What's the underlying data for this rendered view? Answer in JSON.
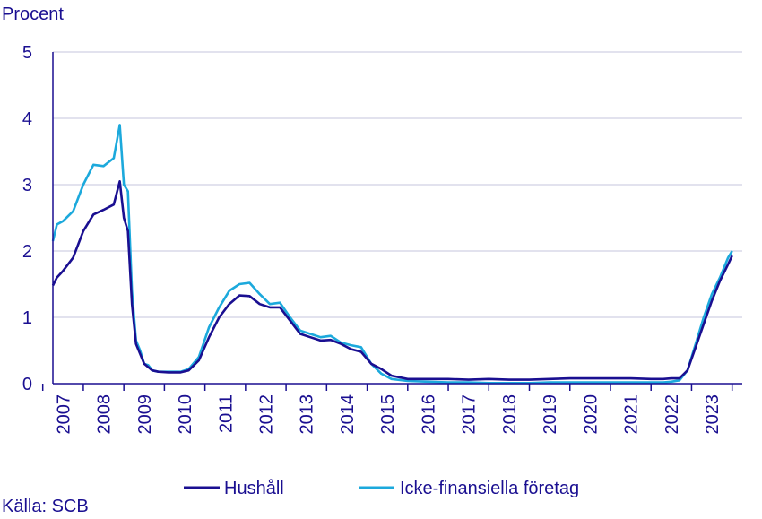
{
  "chart_data": {
    "type": "line",
    "ylabel": "Procent",
    "ylim": [
      0,
      5
    ],
    "yticks": [
      "0",
      "1",
      "2",
      "3",
      "4",
      "5"
    ],
    "xlim": [
      2006.75,
      2023.75
    ],
    "xticks": [
      "2007",
      "2008",
      "2009",
      "2010",
      "2011",
      "2012",
      "2013",
      "2014",
      "2015",
      "2016",
      "2017",
      "2018",
      "2019",
      "2020",
      "2021",
      "2022",
      "2023"
    ],
    "grid": true,
    "legend": "bottom",
    "source": "Källa: SCB",
    "series": [
      {
        "name": "Hushåll",
        "color": "#1a0f91",
        "x": [
          2006.75,
          2006.85,
          2007.0,
          2007.25,
          2007.5,
          2007.75,
          2008.0,
          2008.25,
          2008.4,
          2008.5,
          2008.6,
          2008.7,
          2008.8,
          2008.9,
          2009.0,
          2009.1,
          2009.2,
          2009.35,
          2009.6,
          2009.9,
          2010.1,
          2010.35,
          2010.6,
          2010.85,
          2011.1,
          2011.35,
          2011.6,
          2011.85,
          2012.1,
          2012.35,
          2012.6,
          2012.85,
          2013.1,
          2013.35,
          2013.6,
          2013.85,
          2014.1,
          2014.35,
          2014.6,
          2014.85,
          2015.1,
          2015.5,
          2016.0,
          2016.5,
          2017.0,
          2017.5,
          2018.0,
          2018.5,
          2019.0,
          2019.5,
          2020.0,
          2020.5,
          2021.0,
          2021.5,
          2021.8,
          2022.0,
          2022.2,
          2022.4,
          2022.6,
          2022.8,
          2023.0,
          2023.2,
          2023.4,
          2023.5
        ],
        "values": [
          1.48,
          1.6,
          1.7,
          1.9,
          2.3,
          2.55,
          2.62,
          2.7,
          3.05,
          2.5,
          2.3,
          1.2,
          0.6,
          0.45,
          0.3,
          0.25,
          0.2,
          0.18,
          0.17,
          0.17,
          0.2,
          0.35,
          0.7,
          1.0,
          1.2,
          1.33,
          1.32,
          1.2,
          1.15,
          1.15,
          0.95,
          0.75,
          0.7,
          0.65,
          0.66,
          0.6,
          0.52,
          0.48,
          0.3,
          0.22,
          0.12,
          0.07,
          0.07,
          0.07,
          0.06,
          0.07,
          0.06,
          0.06,
          0.07,
          0.08,
          0.08,
          0.08,
          0.08,
          0.07,
          0.07,
          0.08,
          0.08,
          0.2,
          0.55,
          0.9,
          1.25,
          1.55,
          1.8,
          1.93
        ]
      },
      {
        "name": "Icke-finansiella företag",
        "color": "#1ca9dc",
        "x": [
          2006.75,
          2006.85,
          2007.0,
          2007.25,
          2007.5,
          2007.75,
          2008.0,
          2008.25,
          2008.4,
          2008.5,
          2008.6,
          2008.7,
          2008.8,
          2008.9,
          2009.0,
          2009.1,
          2009.2,
          2009.35,
          2009.6,
          2009.9,
          2010.1,
          2010.35,
          2010.6,
          2010.85,
          2011.1,
          2011.35,
          2011.6,
          2011.85,
          2012.1,
          2012.35,
          2012.6,
          2012.85,
          2013.1,
          2013.35,
          2013.6,
          2013.85,
          2014.1,
          2014.35,
          2014.6,
          2014.85,
          2015.1,
          2015.5,
          2016.0,
          2016.5,
          2017.0,
          2017.5,
          2018.0,
          2018.5,
          2019.0,
          2019.5,
          2020.0,
          2020.5,
          2021.0,
          2021.5,
          2021.8,
          2022.0,
          2022.2,
          2022.4,
          2022.6,
          2022.8,
          2023.0,
          2023.2,
          2023.4,
          2023.5
        ],
        "values": [
          2.15,
          2.4,
          2.45,
          2.6,
          3.0,
          3.3,
          3.28,
          3.4,
          3.9,
          3.0,
          2.9,
          1.4,
          0.65,
          0.5,
          0.3,
          0.28,
          0.2,
          0.18,
          0.18,
          0.18,
          0.22,
          0.4,
          0.85,
          1.15,
          1.4,
          1.5,
          1.52,
          1.35,
          1.2,
          1.22,
          1.0,
          0.8,
          0.75,
          0.7,
          0.72,
          0.62,
          0.58,
          0.55,
          0.3,
          0.15,
          0.07,
          0.04,
          0.03,
          0.02,
          0.02,
          0.01,
          0.01,
          0.01,
          0.02,
          0.02,
          0.02,
          0.02,
          0.02,
          0.02,
          0.02,
          0.03,
          0.05,
          0.2,
          0.6,
          1.0,
          1.35,
          1.6,
          1.9,
          2.0
        ]
      }
    ]
  }
}
